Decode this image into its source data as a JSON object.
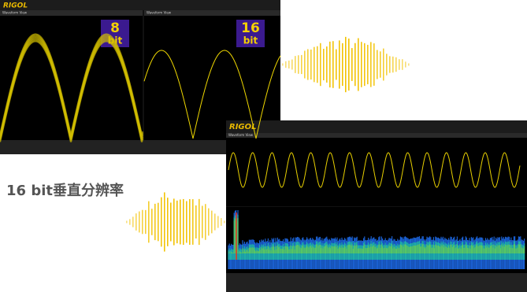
{
  "top_scope": {
    "logo": "RIGOL",
    "panels": [
      {
        "title": "Waveform View",
        "badge_number": "8",
        "badge_unit": "bit"
      },
      {
        "title": "Waveform View",
        "badge_number": "16",
        "badge_unit": "bit"
      }
    ]
  },
  "caption": "16 bit垂直分辨率",
  "bottom_scope": {
    "logo": "RIGOL",
    "panels": [
      {
        "title": "Waveform View"
      }
    ]
  }
}
